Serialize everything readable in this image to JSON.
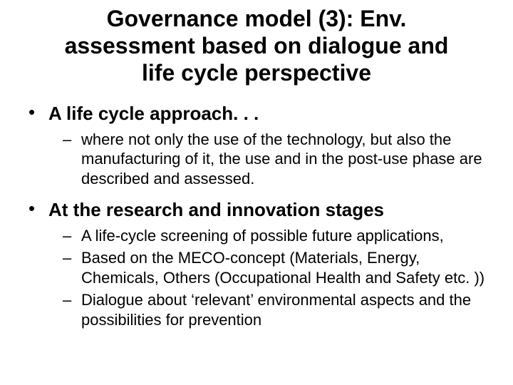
{
  "colors": {
    "background": "#ffffff",
    "text": "#000000"
  },
  "typography": {
    "font_family": "Arial",
    "title_fontsize_pt": 32,
    "level1_fontsize_pt": 26,
    "level2_fontsize_pt": 22,
    "title_weight": "bold",
    "level1_weight": "bold",
    "level2_weight": "normal"
  },
  "title": "Governance model (3): Env. assessment based on dialogue and life cycle perspective",
  "bullets": [
    {
      "text": "A life cycle approach. . .",
      "sub": [
        "where not only the use of the technology, but also the manufacturing of it, the use and in the post-use phase are described and assessed."
      ]
    },
    {
      "text": "At the research and innovation stages",
      "sub": [
        "A life-cycle screening of possible future applications,",
        "Based on the MECO-concept (Materials, Energy, Chemicals, Others (Occupational Health and Safety etc. ))",
        "Dialogue about ‘relevant’ environmental aspects and the possibilities for prevention"
      ]
    }
  ]
}
